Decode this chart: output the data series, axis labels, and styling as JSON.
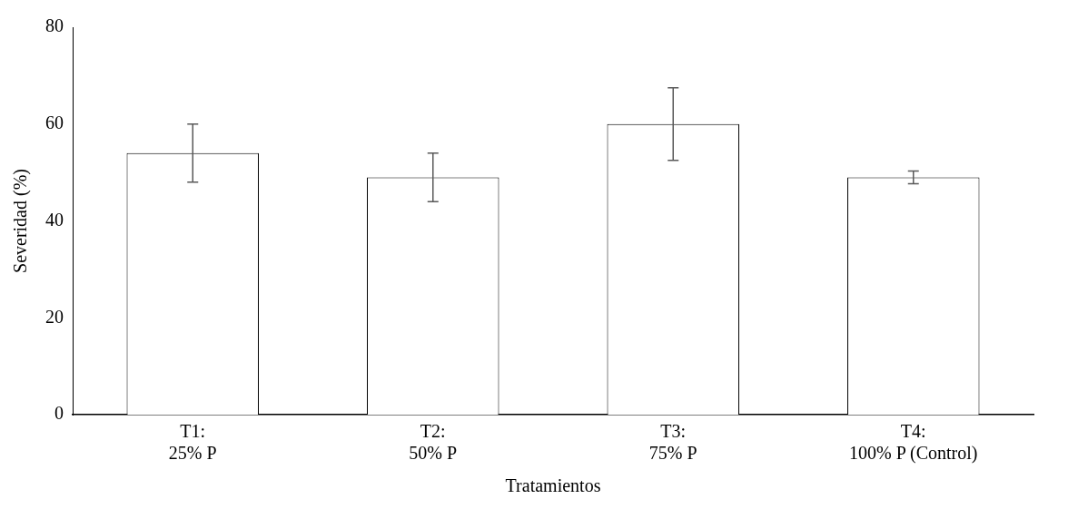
{
  "chart_data": {
    "type": "bar",
    "xlabel": "Tratamientos",
    "ylabel": "Severidad (%)",
    "categories": [
      "T1:\n25% P",
      "T2:\n50% P",
      "T3:\n75% P",
      "T4:\n100% P (Control)"
    ],
    "values": [
      54,
      49,
      60,
      49
    ],
    "errors": [
      6,
      5,
      7.5,
      1.3
    ],
    "color": "#ffffff",
    "ylim": [
      0,
      80
    ],
    "yticks": [
      0,
      20,
      40,
      60,
      80
    ],
    "grid": false,
    "legend": false
  }
}
